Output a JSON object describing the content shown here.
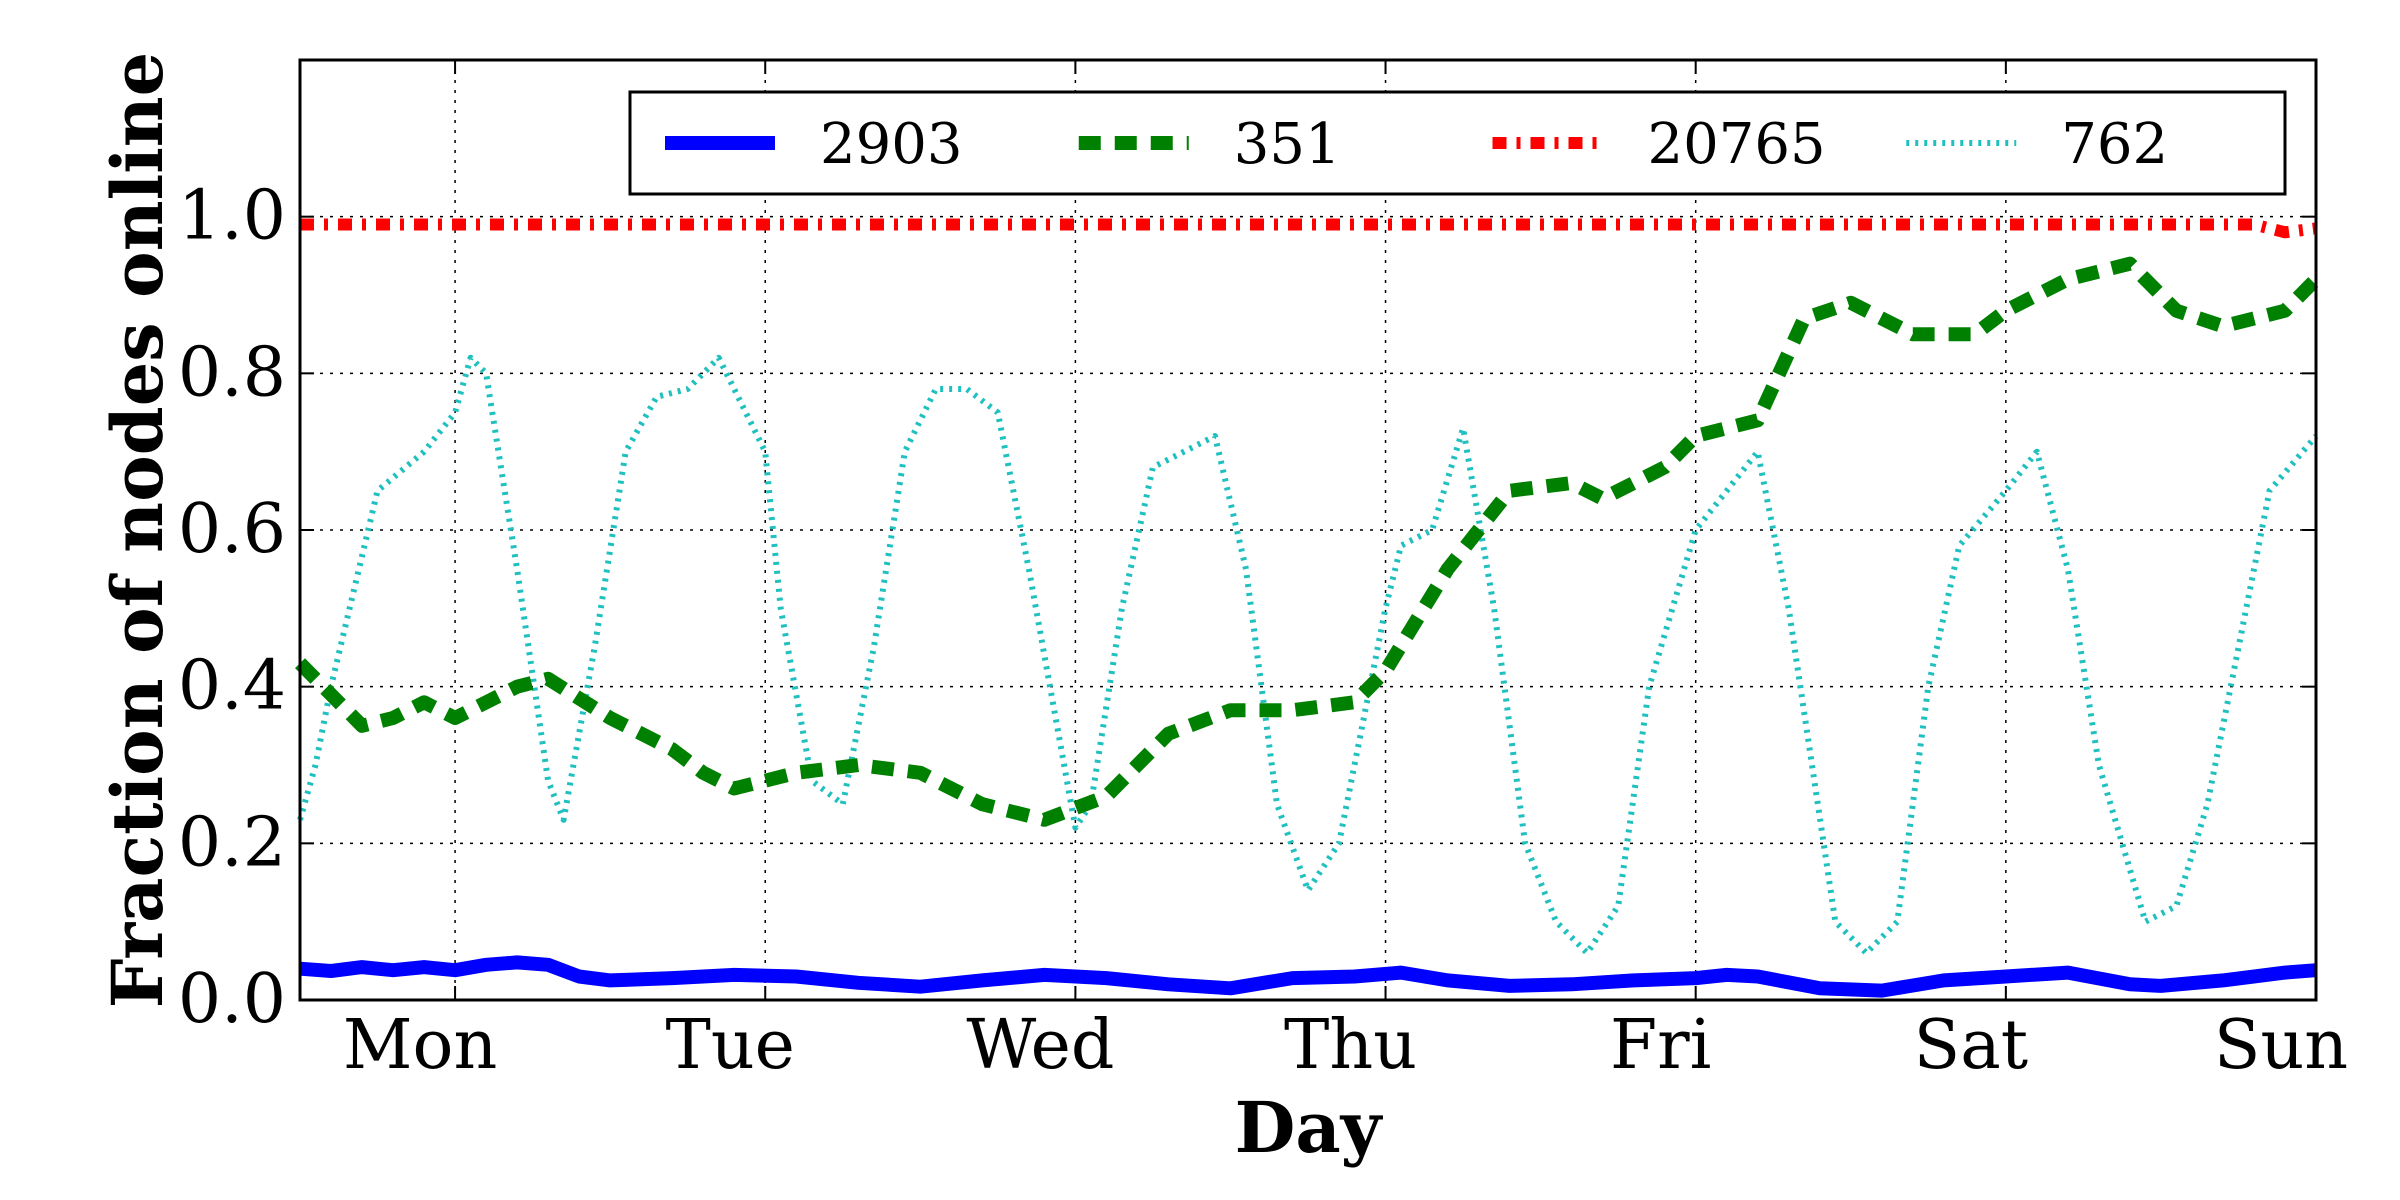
{
  "chart_data": {
    "type": "line",
    "title": "",
    "xlabel": "Day",
    "ylabel": "Fraction of nodes online",
    "xlim": [
      0.5,
      7.0
    ],
    "ylim": [
      0.0,
      1.2
    ],
    "grid": true,
    "legend_position": "top",
    "x_ticks": [
      {
        "value": 1,
        "label": "Mon"
      },
      {
        "value": 2,
        "label": "Tue"
      },
      {
        "value": 3,
        "label": "Wed"
      },
      {
        "value": 4,
        "label": "Thu"
      },
      {
        "value": 5,
        "label": "Fri"
      },
      {
        "value": 6,
        "label": "Sat"
      },
      {
        "value": 7,
        "label": "Sun"
      }
    ],
    "y_ticks": [
      {
        "value": 0.0,
        "label": "0.0"
      },
      {
        "value": 0.2,
        "label": "0.2"
      },
      {
        "value": 0.4,
        "label": "0.4"
      },
      {
        "value": 0.6,
        "label": "0.6"
      },
      {
        "value": 0.8,
        "label": "0.8"
      },
      {
        "value": 1.0,
        "label": "1.0"
      }
    ],
    "series": [
      {
        "name": "2903",
        "color": "#0000ff",
        "style": "solid",
        "x": [
          0.5,
          0.6,
          0.7,
          0.8,
          0.9,
          1.0,
          1.1,
          1.2,
          1.3,
          1.4,
          1.5,
          1.7,
          1.9,
          2.1,
          2.3,
          2.5,
          2.7,
          2.9,
          3.1,
          3.3,
          3.5,
          3.7,
          3.9,
          4.05,
          4.2,
          4.4,
          4.6,
          4.8,
          5.0,
          5.1,
          5.2,
          5.4,
          5.6,
          5.8,
          6.0,
          6.2,
          6.4,
          6.5,
          6.7,
          6.9,
          7.0
        ],
        "values": [
          0.04,
          0.037,
          0.042,
          0.038,
          0.042,
          0.038,
          0.045,
          0.048,
          0.045,
          0.03,
          0.025,
          0.028,
          0.032,
          0.03,
          0.022,
          0.017,
          0.025,
          0.032,
          0.028,
          0.02,
          0.015,
          0.028,
          0.03,
          0.035,
          0.025,
          0.018,
          0.02,
          0.025,
          0.028,
          0.032,
          0.03,
          0.015,
          0.012,
          0.025,
          0.03,
          0.035,
          0.02,
          0.018,
          0.025,
          0.035,
          0.038
        ]
      },
      {
        "name": "351",
        "color": "#008000",
        "style": "dashed",
        "x": [
          0.5,
          0.6,
          0.7,
          0.8,
          0.9,
          1.0,
          1.2,
          1.3,
          1.5,
          1.7,
          1.8,
          1.9,
          2.0,
          2.1,
          2.3,
          2.5,
          2.6,
          2.7,
          2.8,
          2.9,
          3.1,
          3.3,
          3.5,
          3.7,
          3.9,
          4.0,
          4.2,
          4.4,
          4.6,
          4.7,
          4.9,
          5.0,
          5.2,
          5.35,
          5.5,
          5.7,
          5.9,
          6.0,
          6.2,
          6.4,
          6.55,
          6.7,
          6.9,
          7.0
        ],
        "values": [
          0.43,
          0.39,
          0.35,
          0.36,
          0.38,
          0.36,
          0.4,
          0.41,
          0.36,
          0.32,
          0.29,
          0.27,
          0.28,
          0.29,
          0.3,
          0.29,
          0.27,
          0.25,
          0.24,
          0.23,
          0.26,
          0.34,
          0.37,
          0.37,
          0.38,
          0.42,
          0.55,
          0.65,
          0.66,
          0.64,
          0.68,
          0.72,
          0.74,
          0.87,
          0.89,
          0.85,
          0.85,
          0.88,
          0.92,
          0.94,
          0.88,
          0.86,
          0.88,
          0.92
        ]
      },
      {
        "name": "20765",
        "color": "#ff0000",
        "style": "dashdot",
        "x": [
          0.5,
          1.0,
          1.5,
          2.0,
          2.5,
          3.0,
          3.5,
          4.0,
          4.5,
          5.0,
          5.5,
          6.0,
          6.5,
          6.8,
          6.9,
          7.0
        ],
        "values": [
          0.99,
          0.99,
          0.99,
          0.99,
          0.99,
          0.99,
          0.99,
          0.99,
          0.99,
          0.99,
          0.99,
          0.99,
          0.99,
          0.99,
          0.98,
          0.985
        ]
      },
      {
        "name": "762",
        "color": "#20c0c0",
        "style": "dotted",
        "x": [
          0.5,
          0.55,
          0.6,
          0.75,
          0.9,
          1.0,
          1.05,
          1.1,
          1.2,
          1.3,
          1.35,
          1.45,
          1.55,
          1.65,
          1.75,
          1.85,
          2.0,
          2.05,
          2.15,
          2.25,
          2.35,
          2.45,
          2.55,
          2.65,
          2.75,
          2.85,
          3.0,
          3.05,
          3.15,
          3.25,
          3.35,
          3.45,
          3.55,
          3.65,
          3.75,
          3.85,
          4.0,
          4.05,
          4.15,
          4.25,
          4.35,
          4.45,
          4.55,
          4.65,
          4.75,
          4.85,
          5.0,
          5.1,
          5.2,
          5.3,
          5.45,
          5.55,
          5.65,
          5.75,
          5.85,
          6.0,
          6.1,
          6.2,
          6.3,
          6.45,
          6.55,
          6.65,
          6.75,
          6.85,
          7.0
        ],
        "values": [
          0.23,
          0.3,
          0.4,
          0.65,
          0.7,
          0.75,
          0.82,
          0.8,
          0.55,
          0.28,
          0.23,
          0.45,
          0.7,
          0.77,
          0.78,
          0.82,
          0.7,
          0.5,
          0.28,
          0.25,
          0.45,
          0.7,
          0.78,
          0.78,
          0.75,
          0.55,
          0.22,
          0.25,
          0.5,
          0.68,
          0.7,
          0.72,
          0.55,
          0.25,
          0.14,
          0.2,
          0.5,
          0.58,
          0.6,
          0.73,
          0.5,
          0.2,
          0.1,
          0.06,
          0.12,
          0.4,
          0.6,
          0.65,
          0.7,
          0.5,
          0.1,
          0.06,
          0.1,
          0.4,
          0.58,
          0.65,
          0.7,
          0.55,
          0.3,
          0.1,
          0.12,
          0.25,
          0.45,
          0.65,
          0.72
        ]
      }
    ]
  }
}
